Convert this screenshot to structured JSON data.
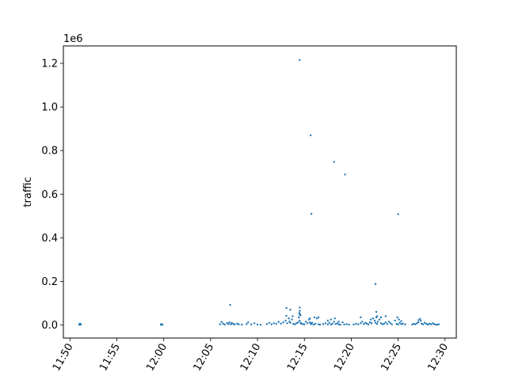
{
  "chart_data": {
    "type": "scatter",
    "title": "",
    "xlabel": "",
    "ylabel": "traffic",
    "y_offset_text": "1e6",
    "y_scale_factor": 1000000,
    "xlim": [
      "11:49:18",
      "12:31:12"
    ],
    "ylim": [
      -60000,
      1280000
    ],
    "x_ticks": [
      "11:50",
      "11:55",
      "12:00",
      "12:05",
      "12:10",
      "12:15",
      "12:20",
      "12:25",
      "12:30"
    ],
    "y_ticks": [
      0.0,
      0.2,
      0.4,
      0.6,
      0.8,
      1.0,
      1.2
    ],
    "y_tick_labels": [
      "0.0",
      "0.2",
      "0.4",
      "0.6",
      "0.8",
      "1.0",
      "1.2"
    ],
    "grid": false,
    "legend": "none",
    "marker_color": "#1f77b4",
    "series": [
      {
        "x": [
          "11:51:00",
          "11:51:00",
          "11:51:05",
          "11:51:05",
          "11:51:10",
          "11:59:42",
          "11:59:45",
          "11:59:48",
          "11:59:52",
          "12:06:00",
          "12:06:10",
          "12:06:20",
          "12:06:30",
          "12:06:45",
          "12:06:55",
          "12:07:00",
          "12:07:10",
          "12:07:15",
          "12:07:25",
          "12:07:35",
          "12:07:50",
          "12:08:00",
          "12:08:20",
          "12:08:50",
          "12:09:00",
          "12:09:20",
          "12:09:40",
          "12:10:00",
          "12:10:20",
          "12:11:00",
          "12:11:15",
          "12:11:30",
          "12:11:45",
          "12:12:00",
          "12:12:15",
          "12:12:30",
          "12:12:45",
          "12:13:00",
          "12:13:05",
          "12:13:10",
          "12:13:20",
          "12:13:25",
          "12:13:30",
          "12:13:40",
          "12:13:45",
          "12:13:50",
          "12:14:00",
          "12:14:10",
          "12:14:20",
          "12:14:25",
          "12:14:28",
          "12:14:30",
          "12:14:32",
          "12:14:35",
          "12:14:40",
          "12:14:50",
          "12:15:00",
          "12:15:10",
          "12:15:20",
          "12:15:30",
          "12:15:35",
          "12:15:40",
          "12:15:45",
          "12:15:50",
          "12:16:00",
          "12:16:10",
          "12:16:20",
          "12:16:30",
          "12:16:40",
          "12:17:00",
          "12:17:15",
          "12:17:30",
          "12:17:40",
          "12:17:50",
          "12:18:00",
          "12:18:10",
          "12:18:20",
          "12:18:30",
          "12:18:40",
          "12:18:50",
          "12:19:05",
          "12:19:15",
          "12:19:30",
          "12:19:45",
          "12:20:15",
          "12:20:30",
          "12:20:45",
          "12:21:00",
          "12:21:10",
          "12:21:20",
          "12:21:30",
          "12:21:40",
          "12:21:50",
          "12:22:00",
          "12:22:05",
          "12:22:10",
          "12:22:20",
          "12:22:30",
          "12:22:35",
          "12:22:40",
          "12:22:45",
          "12:22:50",
          "12:23:00",
          "12:23:10",
          "12:23:20",
          "12:23:30",
          "12:23:40",
          "12:23:50",
          "12:24:00",
          "12:24:10",
          "12:24:20",
          "12:24:40",
          "12:24:50",
          "12:25:00",
          "12:25:10",
          "12:25:20",
          "12:25:30",
          "12:25:45",
          "12:26:30",
          "12:26:40",
          "12:26:50",
          "12:27:00",
          "12:27:10",
          "12:27:20",
          "12:27:25",
          "12:27:30",
          "12:27:40",
          "12:27:50",
          "12:28:00",
          "12:28:10",
          "12:28:20",
          "12:28:30",
          "12:28:40",
          "12:28:50",
          "12:29:00",
          "12:29:10",
          "12:29:20",
          "12:07:05",
          "12:13:05",
          "12:13:30",
          "12:14:30",
          "12:14:30",
          "12:14:30",
          "12:14:35",
          "12:15:35",
          "12:16:05",
          "12:16:30",
          "12:17:30",
          "12:17:50",
          "12:18:15",
          "12:18:40",
          "12:21:00",
          "12:22:40",
          "12:22:45",
          "12:23:10",
          "12:23:40",
          "12:24:55",
          "12:25:05",
          "12:25:20",
          "12:27:10",
          "12:14:30",
          "12:15:40",
          "12:15:45",
          "12:18:10",
          "12:19:20",
          "12:22:35",
          "12:25:00"
        ],
        "y": [
          1000,
          3000,
          1500,
          6000,
          2500,
          1000,
          4000,
          2000,
          1500,
          3000,
          14000,
          6000,
          2000,
          8000,
          4000,
          12000,
          3000,
          9000,
          5000,
          2000,
          6000,
          3000,
          1500,
          4000,
          12000,
          3000,
          8000,
          2000,
          1000,
          4000,
          10000,
          3000,
          8000,
          5000,
          14000,
          6000,
          12000,
          20000,
          42000,
          8000,
          30000,
          15000,
          10000,
          25000,
          40000,
          5000,
          3000,
          8000,
          12000,
          35000,
          55000,
          20000,
          45000,
          10000,
          6000,
          4000,
          3000,
          15000,
          8000,
          25000,
          12000,
          6000,
          4000,
          10000,
          2000,
          5000,
          30000,
          3000,
          1500,
          4000,
          8000,
          3000,
          10000,
          2000,
          6000,
          15000,
          4000,
          8000,
          3000,
          1500,
          12000,
          2000,
          4000,
          1500,
          2000,
          5000,
          3000,
          8000,
          15000,
          4000,
          10000,
          6000,
          3000,
          12000,
          25000,
          8000,
          30000,
          20000,
          10000,
          35000,
          5000,
          15000,
          25000,
          8000,
          3000,
          6000,
          12000,
          4000,
          15000,
          8000,
          3000,
          20000,
          5000,
          2000,
          10000,
          4000,
          6000,
          3000,
          2000,
          5000,
          3000,
          8000,
          12000,
          28000,
          20000,
          6000,
          3000,
          10000,
          5000,
          2000,
          6000,
          3000,
          8000,
          4000,
          2000,
          1500,
          3000,
          92000,
          78000,
          70000,
          80000,
          65000,
          50000,
          45000,
          30000,
          35000,
          35000,
          20000,
          25000,
          30000,
          15000,
          35000,
          60000,
          40000,
          35000,
          40000,
          35000,
          25000,
          18000,
          22000,
          1215000,
          870000,
          510000,
          748000,
          690000,
          188000,
          508000
        ]
      }
    ]
  }
}
